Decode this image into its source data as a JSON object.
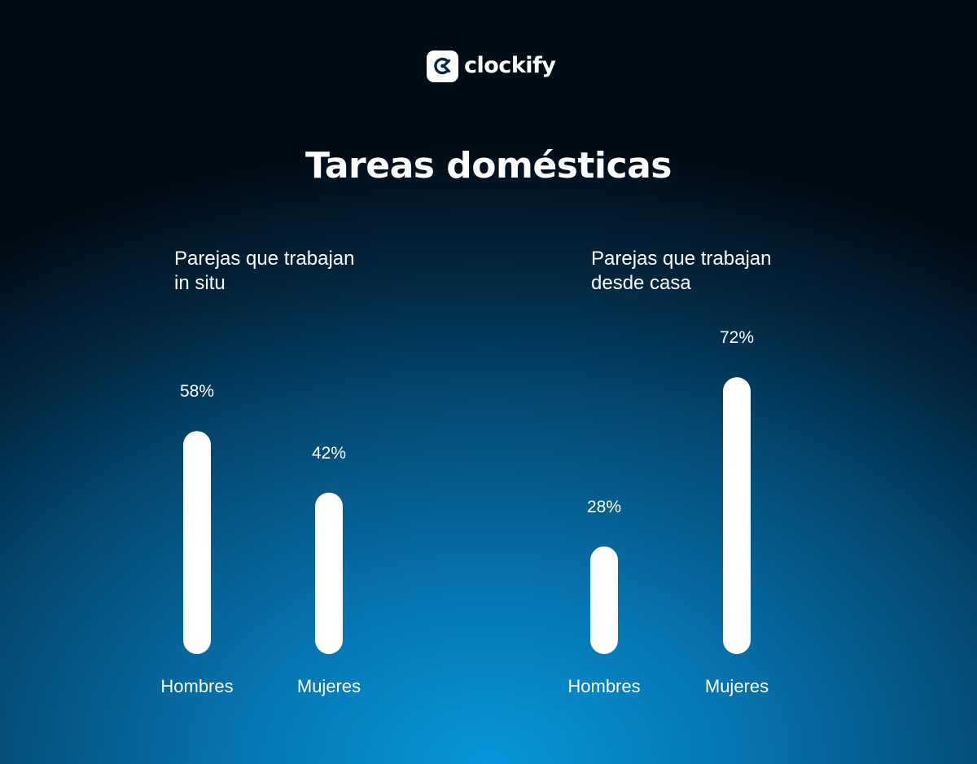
{
  "brand": {
    "name": "clockify",
    "logo_icon": "clockify-logo-icon"
  },
  "title": "Tareas domésticas",
  "colors": {
    "bar": "#ffffff",
    "text": "#ffffff",
    "logo_mark": "#03273f"
  },
  "chart_data": [
    {
      "type": "bar",
      "title": "Parejas que trabajan\nin situ",
      "categories": [
        "Hombres",
        "Mujeres"
      ],
      "values": [
        58,
        42
      ],
      "value_labels": [
        "58%",
        "42%"
      ],
      "unit": "%",
      "ylim": [
        0,
        100
      ],
      "grid": false,
      "legend": "none"
    },
    {
      "type": "bar",
      "title": "Parejas que trabajan\ndesde casa",
      "categories": [
        "Hombres",
        "Mujeres"
      ],
      "values": [
        28,
        72
      ],
      "value_labels": [
        "28%",
        "72%"
      ],
      "unit": "%",
      "ylim": [
        0,
        100
      ],
      "grid": false,
      "legend": "none"
    }
  ]
}
